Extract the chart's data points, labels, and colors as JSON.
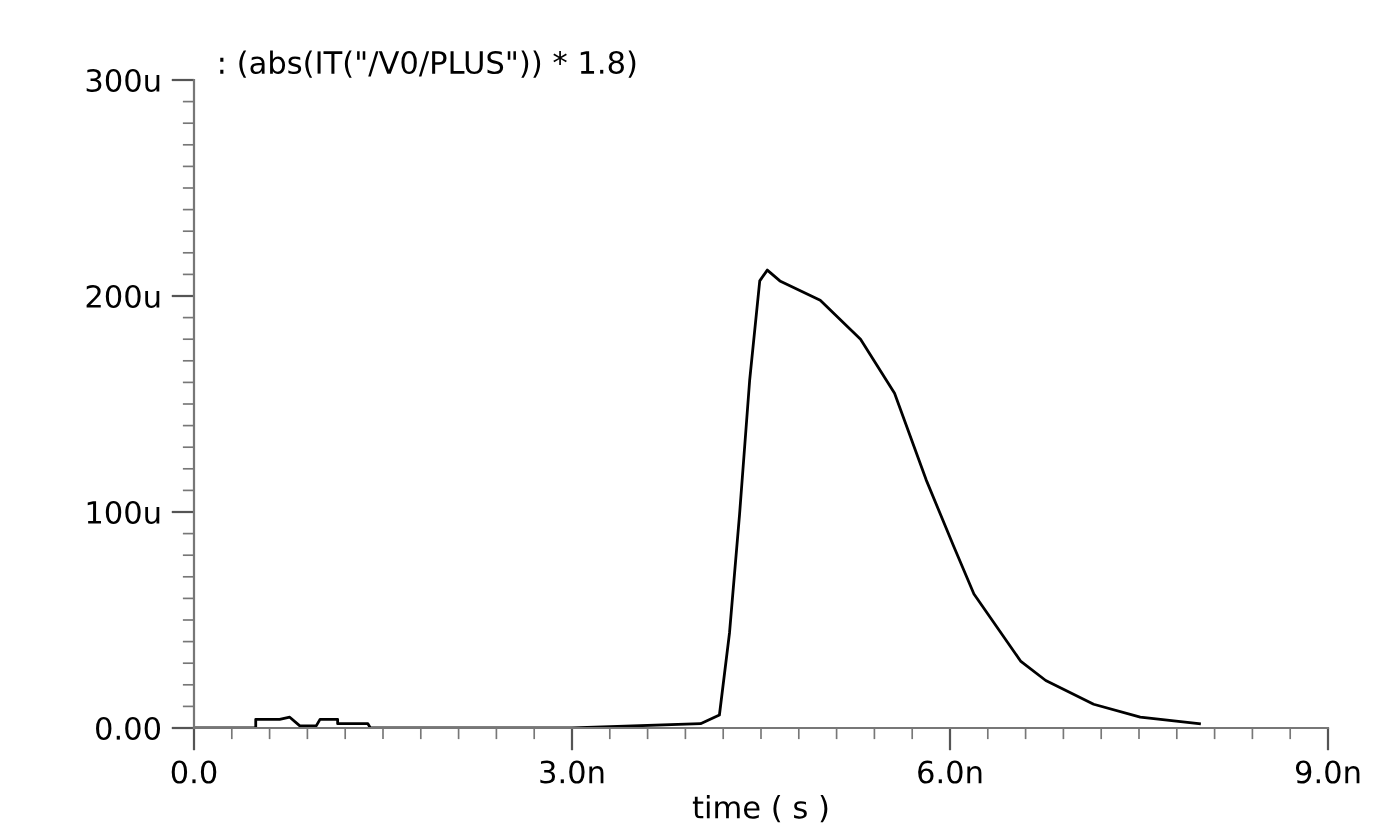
{
  "chart_data": {
    "type": "line",
    "title": ": (abs(IT(\"/V0/PLUS\")) * 1.8)",
    "xlabel": "time ( s )",
    "series": [
      {
        "color": "#000000",
        "x": [
          0,
          0.49,
          0.49,
          0.68,
          0.76,
          0.84,
          0.97,
          1.0,
          1.14,
          1.14,
          1.38,
          1.4,
          3.0,
          4.02,
          4.17,
          4.25,
          4.33,
          4.41,
          4.49,
          4.55,
          4.65,
          4.97,
          5.29,
          5.56,
          5.81,
          6.03,
          6.19,
          6.56,
          6.76,
          7.14,
          7.51,
          7.98
        ],
        "values": [
          0,
          0,
          4,
          4,
          5,
          1,
          1,
          4,
          4,
          2,
          2,
          0,
          0,
          2,
          6,
          44,
          99,
          161,
          207,
          212,
          207,
          198,
          180,
          155,
          115,
          84,
          62,
          31,
          22,
          11,
          5,
          2
        ]
      }
    ],
    "xlim": [
      0,
      9
    ],
    "xticks": [
      {
        "value": 0,
        "label": "0.0"
      },
      {
        "value": 3,
        "label": "3.0n"
      },
      {
        "value": 6,
        "label": "6.0n"
      },
      {
        "value": 9,
        "label": "9.0n"
      }
    ],
    "ylim": [
      0,
      300
    ],
    "yticks": [
      {
        "value": 0,
        "label": "0.00"
      },
      {
        "value": 100,
        "label": "100u"
      },
      {
        "value": 200,
        "label": "200u"
      },
      {
        "value": 300,
        "label": "300u"
      }
    ],
    "grid": false,
    "legend": false,
    "marker": "none",
    "line_style": "solid"
  }
}
